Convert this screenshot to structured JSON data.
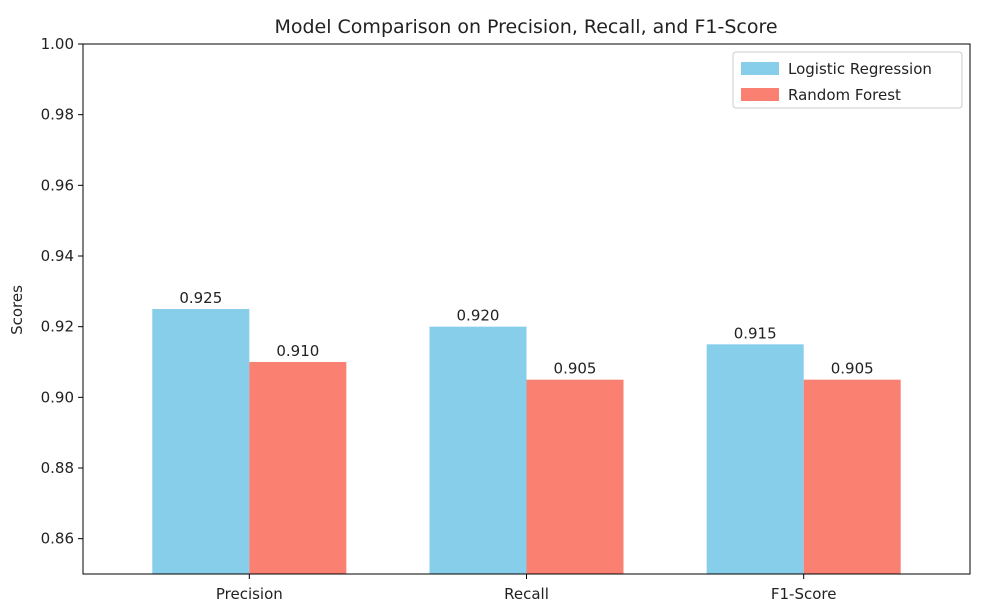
{
  "chart_data": {
    "type": "bar",
    "title": "Model Comparison on Precision, Recall, and F1-Score",
    "xlabel": "",
    "ylabel": "Scores",
    "categories": [
      "Precision",
      "Recall",
      "F1-Score"
    ],
    "ylim": [
      0.85,
      1.0
    ],
    "yticks": [
      "0.86",
      "0.88",
      "0.90",
      "0.92",
      "0.94",
      "0.96",
      "0.98",
      "1.00"
    ],
    "grid": false,
    "legend_position": "top-right",
    "series": [
      {
        "name": "Logistic Regression",
        "color": "#87ceeb",
        "values": [
          0.925,
          0.92,
          0.915
        ],
        "labels": [
          "0.925",
          "0.920",
          "0.915"
        ]
      },
      {
        "name": "Random Forest",
        "color": "#fa8072",
        "values": [
          0.91,
          0.905,
          0.905
        ],
        "labels": [
          "0.910",
          "0.905",
          "0.905"
        ]
      }
    ]
  }
}
